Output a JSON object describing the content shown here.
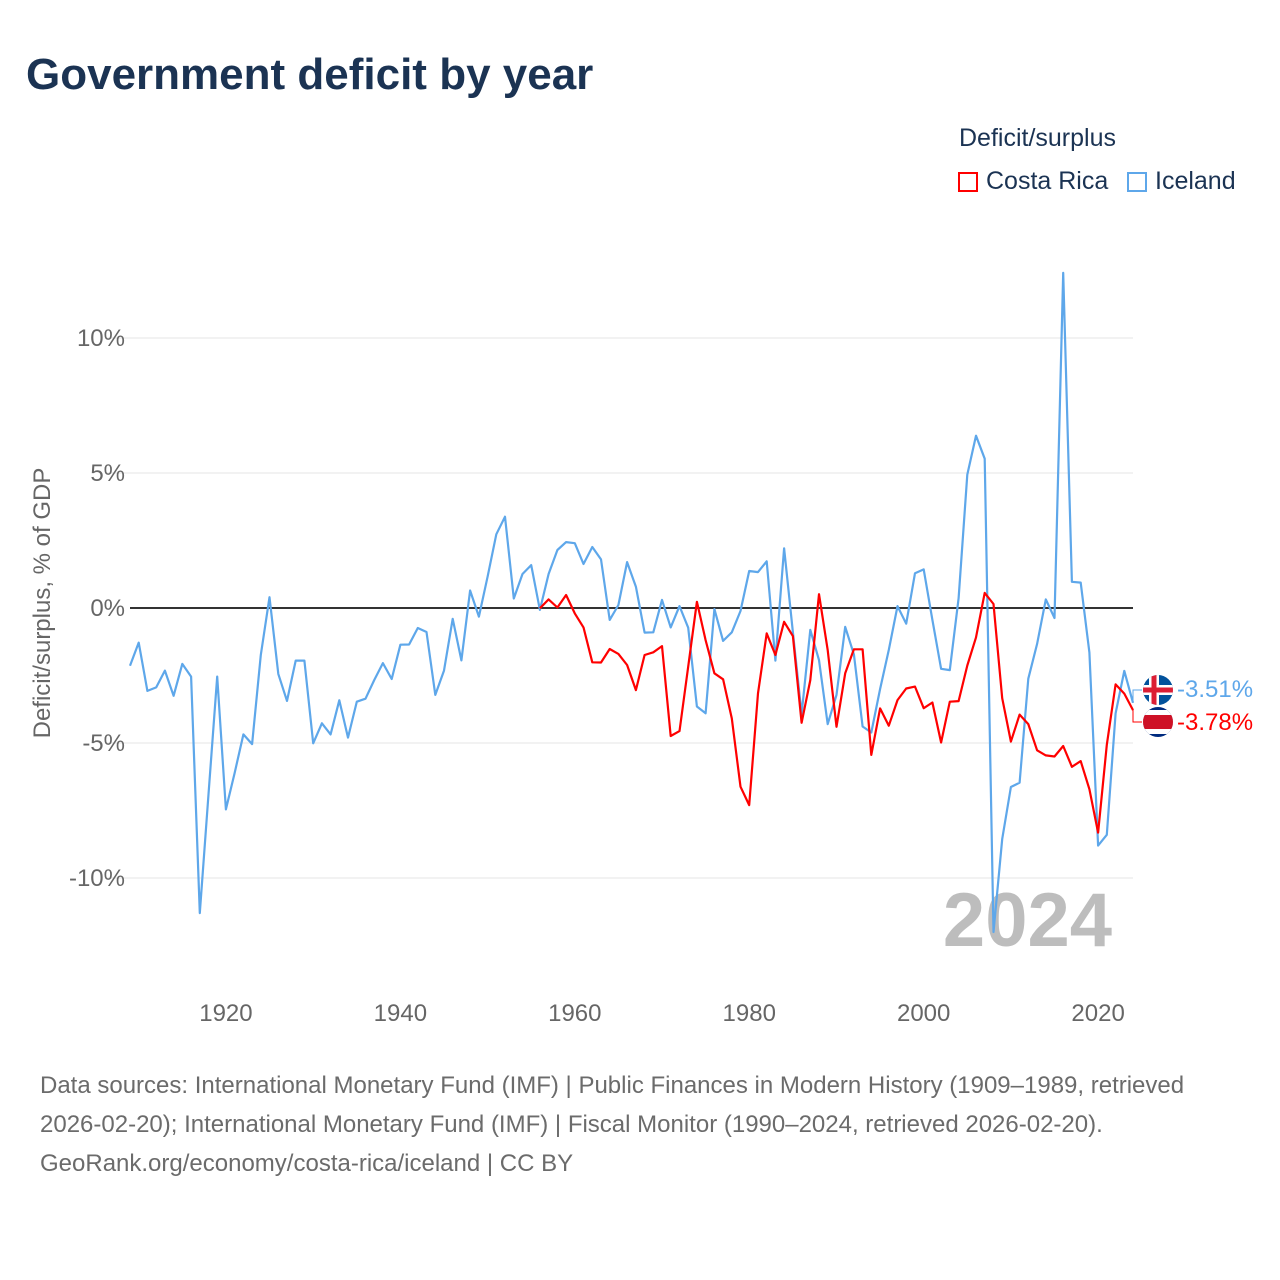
{
  "title": "Government deficit by year",
  "legend": {
    "title": "Deficit/surplus",
    "items": [
      {
        "label": "Costa Rica",
        "color": "#ff0000"
      },
      {
        "label": "Iceland",
        "color": "#5ea7ea"
      }
    ]
  },
  "year_watermark": "2024",
  "footer": {
    "sources": "Data sources: International Monetary Fund (IMF) | Public Finances in Modern History (1909–1989, retrieved 2026-02-20); International Monetary Fund (IMF) | Fiscal Monitor (1990–2024, retrieved 2026-02-20).",
    "credit": "GeoRank.org/economy/costa-rica/iceland | CC BY"
  },
  "chart_data": {
    "type": "line",
    "title": "Government deficit by year",
    "xlabel": "",
    "ylabel": "Deficit/surplus, % of GDP",
    "xlim": [
      1909,
      2024
    ],
    "ylim": [
      -12.5,
      12.5
    ],
    "x_ticks": [
      1920,
      1940,
      1960,
      1980,
      2000,
      2020
    ],
    "y_ticks": [
      {
        "value": 10,
        "label": "10%"
      },
      {
        "value": 5,
        "label": "5%"
      },
      {
        "value": 0,
        "label": "0%"
      },
      {
        "value": -5,
        "label": "-5%"
      },
      {
        "value": -10,
        "label": "-10%"
      }
    ],
    "grid": true,
    "legend_position": "top-right",
    "series": [
      {
        "name": "Iceland",
        "color": "#5ea7ea",
        "end_label": "-3.51%",
        "start_year": 1909,
        "values": [
          -2.14,
          -1.28,
          -3.07,
          -2.94,
          -2.32,
          -3.25,
          -2.07,
          -2.54,
          -11.3,
          -6.9,
          -2.54,
          -7.46,
          -6.1,
          -4.68,
          -5.04,
          -1.74,
          0.4,
          -2.44,
          -3.44,
          -1.95,
          -1.95,
          -5.01,
          -4.27,
          -4.68,
          -3.42,
          -4.8,
          -3.47,
          -3.36,
          -2.67,
          -2.04,
          -2.63,
          -1.36,
          -1.35,
          -0.74,
          -0.89,
          -3.22,
          -2.32,
          -0.4,
          -1.94,
          0.65,
          -0.32,
          1.16,
          2.73,
          3.38,
          0.35,
          1.26,
          1.59,
          -0.07,
          1.26,
          2.15,
          2.44,
          2.4,
          1.63,
          2.26,
          1.8,
          -0.44,
          0.11,
          1.7,
          0.79,
          -0.91,
          -0.9,
          0.3,
          -0.72,
          0.07,
          -0.73,
          -3.65,
          -3.9,
          -0.04,
          -1.22,
          -0.9,
          -0.11,
          1.37,
          1.33,
          1.73,
          -1.95,
          2.21,
          -0.9,
          -3.93,
          -0.81,
          -1.93,
          -4.3,
          -3.22,
          -0.7,
          -1.72,
          -4.39,
          -4.61,
          -3.0,
          -1.55,
          0.07,
          -0.58,
          1.29,
          1.43,
          -0.44,
          -2.25,
          -2.3,
          0.36,
          4.94,
          6.38,
          5.53,
          -12.0,
          -8.56,
          -6.63,
          -6.47,
          -2.62,
          -1.33,
          0.32,
          -0.37,
          12.41,
          0.97,
          0.94,
          -1.65,
          -8.8,
          -8.4,
          -3.9,
          -2.33,
          -3.51
        ]
      },
      {
        "name": "Costa Rica",
        "color": "#ff0000",
        "end_label": "-3.78%",
        "start_year": 1956,
        "values": [
          -0.01,
          0.32,
          0.02,
          0.48,
          -0.2,
          -0.72,
          -2.01,
          -2.02,
          -1.52,
          -1.7,
          -2.11,
          -3.04,
          -1.74,
          -1.64,
          -1.41,
          -4.74,
          -4.56,
          -2.17,
          0.23,
          -1.19,
          -2.42,
          -2.64,
          -4.09,
          -6.62,
          -7.3,
          -3.16,
          -0.94,
          -1.74,
          -0.51,
          -1.04,
          -4.25,
          -2.67,
          0.51,
          -1.56,
          -4.4,
          -2.42,
          -1.53,
          -1.53,
          -5.44,
          -3.72,
          -4.36,
          -3.41,
          -2.98,
          -2.91,
          -3.71,
          -3.5,
          -4.98,
          -3.47,
          -3.45,
          -2.13,
          -1.09,
          0.56,
          0.15,
          -3.34,
          -4.95,
          -3.95,
          -4.3,
          -5.27,
          -5.46,
          -5.5,
          -5.11,
          -5.88,
          -5.67,
          -6.71,
          -8.32,
          -5.07,
          -2.83,
          -3.17,
          -3.78
        ]
      }
    ]
  }
}
